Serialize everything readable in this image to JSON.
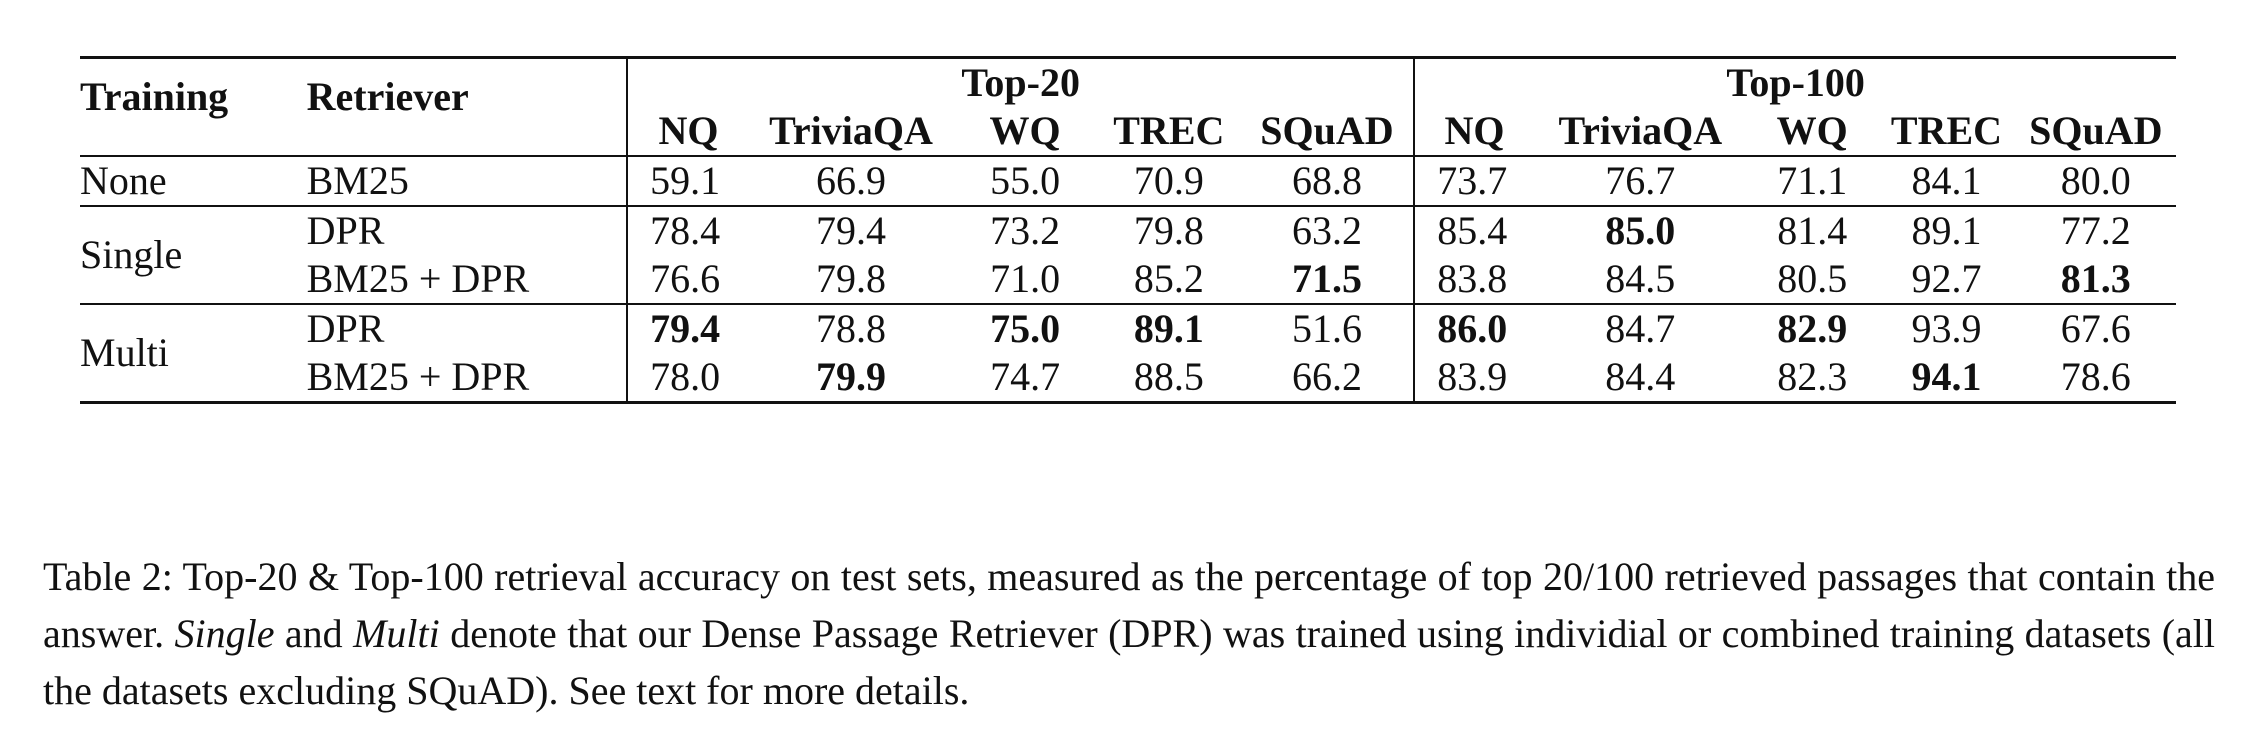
{
  "table": {
    "header": {
      "training": "Training",
      "retriever": "Retriever",
      "groups": [
        "Top-20",
        "Top-100"
      ],
      "datasets": [
        "NQ",
        "TriviaQA",
        "WQ",
        "TREC",
        "SQuAD"
      ]
    },
    "rows": [
      {
        "training": "None",
        "retriever": "BM25",
        "top20": [
          "59.1",
          "66.9",
          "55.0",
          "70.9",
          "68.8"
        ],
        "top20_bold": [
          false,
          false,
          false,
          false,
          false
        ],
        "top100": [
          "73.7",
          "76.7",
          "71.1",
          "84.1",
          "80.0"
        ],
        "top100_bold": [
          false,
          false,
          false,
          false,
          false
        ]
      },
      {
        "training": "Single",
        "retriever": "DPR",
        "top20": [
          "78.4",
          "79.4",
          "73.2",
          "79.8",
          "63.2"
        ],
        "top20_bold": [
          false,
          false,
          false,
          false,
          false
        ],
        "top100": [
          "85.4",
          "85.0",
          "81.4",
          "89.1",
          "77.2"
        ],
        "top100_bold": [
          false,
          true,
          false,
          false,
          false
        ]
      },
      {
        "training": "",
        "retriever": "BM25 + DPR",
        "top20": [
          "76.6",
          "79.8",
          "71.0",
          "85.2",
          "71.5"
        ],
        "top20_bold": [
          false,
          false,
          false,
          false,
          true
        ],
        "top100": [
          "83.8",
          "84.5",
          "80.5",
          "92.7",
          "81.3"
        ],
        "top100_bold": [
          false,
          false,
          false,
          false,
          true
        ]
      },
      {
        "training": "Multi",
        "retriever": "DPR",
        "top20": [
          "79.4",
          "78.8",
          "75.0",
          "89.1",
          "51.6"
        ],
        "top20_bold": [
          true,
          false,
          true,
          true,
          false
        ],
        "top100": [
          "86.0",
          "84.7",
          "82.9",
          "93.9",
          "67.6"
        ],
        "top100_bold": [
          true,
          false,
          true,
          false,
          false
        ]
      },
      {
        "training": "",
        "retriever": "BM25 + DPR",
        "top20": [
          "78.0",
          "79.9",
          "74.7",
          "88.5",
          "66.2"
        ],
        "top20_bold": [
          false,
          true,
          false,
          false,
          false
        ],
        "top100": [
          "83.9",
          "84.4",
          "82.3",
          "94.1",
          "78.6"
        ],
        "top100_bold": [
          false,
          false,
          false,
          true,
          false
        ]
      }
    ]
  },
  "caption": {
    "p1": "Table 2:  Top-20 & Top-100 retrieval accuracy on test sets, measured as the percentage of top 20/100 retrieved passages that contain the answer. ",
    "single": "Single",
    "and": " and ",
    "multi": "Multi",
    "p2": " denote that our Dense Passage Retriever (DPR) was trained using individial or combined training datasets (all the datasets excluding SQuAD). See text for more details."
  }
}
